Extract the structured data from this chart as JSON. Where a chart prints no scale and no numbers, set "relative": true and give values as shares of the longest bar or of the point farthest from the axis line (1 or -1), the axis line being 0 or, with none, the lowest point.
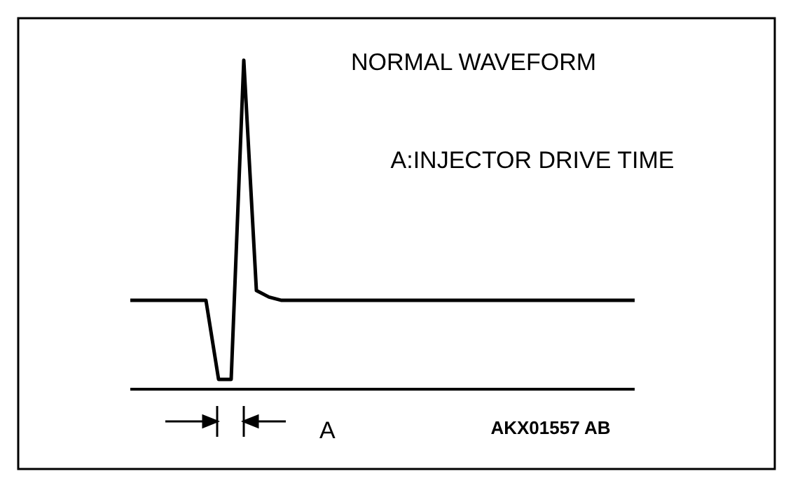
{
  "chart_data": {
    "type": "line",
    "relative": true,
    "categories": [
      null,
      null,
      null,
      null,
      null,
      null,
      null,
      null,
      null,
      null,
      null,
      null,
      null,
      null,
      null,
      null,
      null,
      null,
      null,
      null,
      null,
      null,
      null,
      null,
      null,
      null,
      null,
      null,
      null,
      null,
      null,
      null,
      null,
      null,
      null,
      null,
      null,
      null,
      null,
      null,
      null
    ],
    "series": [
      {
        "color": "#000000",
        "values": [
          0.27,
          0.27,
          0.27,
          0.27,
          0.27,
          0.27,
          0.27,
          0.03,
          0.03,
          1,
          0.3,
          0.28,
          0.27,
          0.27,
          0.27,
          0.27,
          0.27,
          0.27,
          0.27,
          0.27,
          0.27,
          0.27,
          0.27,
          0.27,
          0.27,
          0.27,
          0.27,
          0.27,
          0.27,
          0.27,
          0.27,
          0.27,
          0.27,
          0.27,
          0.27,
          0.27,
          0.27,
          0.27,
          0.27,
          0.27,
          0.27
        ]
      }
    ],
    "annotations": [
      "NORMAL  WAVEFORM",
      "A:INJECTOR DRIVE TIME",
      "A",
      "AKX01557 AB"
    ],
    "marker": "none",
    "line_style": "solid",
    "grid": false,
    "legend": false
  }
}
